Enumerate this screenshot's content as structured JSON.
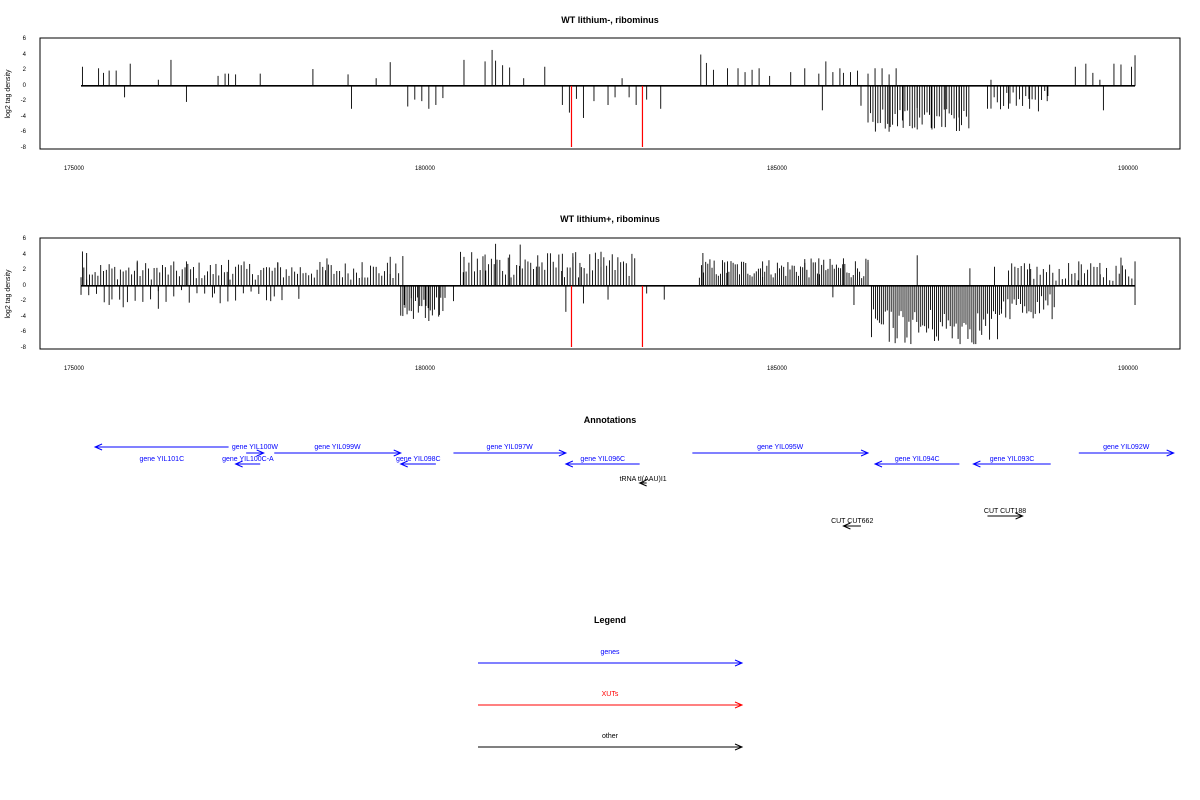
{
  "colors": {
    "gene": "#0000ff",
    "xut": "#ff0000",
    "other": "#000000",
    "signal": "#000000"
  },
  "chart_data": [
    {
      "type": "bar",
      "title": "WT lithium-, ribominus",
      "ylabel": "log2 tag density",
      "xlim": [
        175000,
        190000
      ],
      "ylim": [
        -8,
        6
      ],
      "x_ticks": [
        "175000",
        "180000",
        "185000",
        "190000"
      ],
      "y_ticks": [
        "6",
        "4",
        "2",
        "0",
        "-2",
        "-4",
        "-6",
        "-8"
      ],
      "grid": false,
      "series": [
        {
          "values": [
            [
              175120,
              2.5
            ],
            [
              175350,
              2.3
            ],
            [
              175420,
              1.7
            ],
            [
              175500,
              2.0
            ],
            [
              175600,
              2.0
            ],
            [
              175720,
              -1.5
            ],
            [
              175800,
              2.9
            ],
            [
              176200,
              0.8
            ],
            [
              176380,
              3.4
            ],
            [
              176600,
              -2.1
            ],
            [
              177050,
              1.3
            ],
            [
              177150,
              1.6
            ],
            [
              177200,
              1.6
            ],
            [
              177300,
              1.5
            ],
            [
              177650,
              1.6
            ],
            [
              178400,
              2.2
            ],
            [
              178900,
              1.5
            ],
            [
              178950,
              -3.0
            ],
            [
              179300,
              1.0
            ],
            [
              179500,
              3.1
            ],
            [
              179750,
              -2.7
            ],
            [
              179850,
              -1.8
            ],
            [
              179950,
              -2.0
            ],
            [
              180050,
              -3.0
            ],
            [
              180150,
              -2.5
            ],
            [
              180250,
              -1.6
            ],
            [
              180550,
              3.4
            ],
            [
              180850,
              3.2
            ],
            [
              180950,
              4.7
            ],
            [
              181000,
              3.3
            ],
            [
              181100,
              2.7
            ],
            [
              181200,
              2.4
            ],
            [
              181400,
              1.0
            ],
            [
              181700,
              2.5
            ],
            [
              181950,
              -2.5
            ],
            [
              182050,
              -3.5
            ],
            [
              182150,
              -1.7
            ],
            [
              182250,
              -4.2
            ],
            [
              182400,
              -2.0
            ],
            [
              182600,
              -2.5
            ],
            [
              182700,
              -1.5
            ],
            [
              182800,
              1.0
            ],
            [
              182900,
              -1.5
            ],
            [
              183000,
              -2.5
            ],
            [
              183150,
              -1.8
            ],
            [
              183350,
              -3.0
            ],
            [
              183920,
              4.1
            ],
            [
              184000,
              3.0
            ],
            [
              184100,
              2.1
            ],
            [
              184300,
              2.3
            ],
            [
              184450,
              2.3
            ],
            [
              184550,
              1.8
            ],
            [
              184650,
              2.1
            ],
            [
              184750,
              2.3
            ],
            [
              184900,
              1.3
            ],
            [
              185200,
              1.8
            ],
            [
              185400,
              2.3
            ],
            [
              185600,
              1.6
            ],
            [
              185700,
              3.2
            ],
            [
              185800,
              1.8
            ],
            [
              185900,
              2.3
            ],
            [
              185950,
              1.7
            ],
            [
              186050,
              1.8
            ],
            [
              186150,
              2.0
            ],
            [
              186300,
              1.6
            ],
            [
              186400,
              2.3
            ],
            [
              186500,
              2.3
            ],
            [
              186600,
              1.5
            ],
            [
              186700,
              2.3
            ],
            [
              185650,
              -3.2
            ],
            [
              186200,
              -2.6
            ],
            [
              186600,
              -6.0
            ],
            [
              186800,
              -5.5
            ],
            [
              187000,
              -5.7
            ],
            [
              187200,
              -5.5
            ],
            [
              187400,
              -5.4
            ],
            [
              187600,
              -5.9
            ],
            [
              188050,
              0.8
            ],
            [
              188000,
              -3.0
            ],
            [
              188300,
              -3.0
            ],
            [
              188600,
              -3.0
            ],
            [
              188850,
              -2.0
            ],
            [
              189250,
              2.5
            ],
            [
              189400,
              2.9
            ],
            [
              189500,
              1.7
            ],
            [
              189600,
              0.8
            ],
            [
              189800,
              2.9
            ],
            [
              189900,
              2.8
            ],
            [
              190050,
              2.5
            ],
            [
              190100,
              4.0
            ],
            [
              189650,
              -3.2
            ]
          ]
        }
      ],
      "band": {
        "x0": 186300,
        "x1": 187750,
        "min": -6.0,
        "max": -2.5,
        "step": 35
      },
      "band2": {
        "x0": 188050,
        "x1": 188900,
        "min": -3.5,
        "max": -0.6,
        "step": 45
      },
      "xut_lines": [
        [
          182080,
          -8
        ],
        [
          183090,
          -8
        ]
      ]
    },
    {
      "type": "bar",
      "title": "WT lithium+, ribominus",
      "ylabel": "log2 tag density",
      "xlim": [
        175000,
        190000
      ],
      "ylim": [
        -8,
        6
      ],
      "x_ticks": [
        "175000",
        "180000",
        "185000",
        "190000"
      ],
      "y_ticks": [
        "6",
        "4",
        "2",
        "0",
        "-2",
        "-4",
        "-6",
        "-8"
      ],
      "grid": false,
      "series": [
        {
          "values": [
            [
              175120,
              4.5
            ],
            [
              175180,
              4.3
            ],
            [
              175900,
              3.3
            ],
            [
              176600,
              3.2
            ],
            [
              177200,
              3.4
            ],
            [
              177900,
              3.1
            ],
            [
              178600,
              3.6
            ],
            [
              179100,
              3.1
            ],
            [
              179500,
              3.8
            ],
            [
              179680,
              3.9
            ],
            [
              180550,
              3.8
            ],
            [
              180850,
              4.1
            ],
            [
              181000,
              5.5
            ],
            [
              181200,
              4.1
            ],
            [
              181350,
              5.4
            ],
            [
              181600,
              4.0
            ],
            [
              181950,
              4.2
            ],
            [
              182100,
              3.8
            ],
            [
              182200,
              3.0
            ],
            [
              182500,
              2.5
            ],
            [
              183950,
              4.3
            ],
            [
              184300,
              3.2
            ],
            [
              184800,
              3.2
            ],
            [
              185400,
              3.5
            ],
            [
              185600,
              3.6
            ],
            [
              185950,
              3.6
            ],
            [
              186300,
              3.4
            ],
            [
              187000,
              4.0
            ],
            [
              187750,
              2.3
            ],
            [
              188100,
              2.5
            ],
            [
              188600,
              2.9
            ],
            [
              189300,
              3.2
            ],
            [
              189600,
              3.0
            ],
            [
              189900,
              3.7
            ],
            [
              190100,
              3.2
            ],
            [
              175500,
              -2.5
            ],
            [
              175700,
              -2.8
            ],
            [
              176200,
              -3.0
            ],
            [
              177000,
              -1.0
            ],
            [
              177800,
              -2.0
            ],
            [
              178200,
              -1.7
            ],
            [
              179700,
              -2.5
            ],
            [
              179800,
              -3.3
            ],
            [
              179900,
              -3.5
            ],
            [
              180000,
              -4.2
            ],
            [
              180050,
              -4.6
            ],
            [
              180200,
              -3.8
            ],
            [
              180400,
              -2.0
            ],
            [
              182000,
              -3.4
            ],
            [
              182250,
              -2.3
            ],
            [
              182600,
              -1.8
            ],
            [
              183150,
              -1.0
            ],
            [
              183400,
              -1.8
            ],
            [
              185800,
              -1.5
            ],
            [
              186100,
              -2.5
            ],
            [
              190100,
              -2.5
            ]
          ]
        }
      ],
      "band": {
        "x0": 186350,
        "x1": 188200,
        "min": -7.8,
        "max": -3.0,
        "step": 28
      },
      "band2": {
        "x0": 188200,
        "x1": 188950,
        "min": -4.5,
        "max": -1.0,
        "step": 30
      },
      "band3": {
        "x0": 179650,
        "x1": 180300,
        "min": -4.5,
        "max": -1.5,
        "step": 30
      },
      "dense": [
        {
          "x0": 175100,
          "x1": 179650,
          "min": 0.8,
          "max": 3.2,
          "step": 40
        },
        {
          "x0": 180500,
          "x1": 183000,
          "min": 1.0,
          "max": 4.5,
          "step": 40
        },
        {
          "x0": 183900,
          "x1": 186300,
          "min": 1.0,
          "max": 3.6,
          "step": 30
        },
        {
          "x0": 188300,
          "x1": 190100,
          "min": 0.6,
          "max": 3.0,
          "step": 45
        },
        {
          "x0": 175100,
          "x1": 178000,
          "min": -2.3,
          "max": -0.4,
          "step": 110
        }
      ],
      "xut_lines": [
        [
          182080,
          -8
        ],
        [
          183090,
          -8
        ]
      ]
    }
  ],
  "annotations": {
    "title": "Annotations",
    "xlim": [
      175000,
      190000
    ],
    "features": [
      {
        "label": "gene YIL101C",
        "strand": "-",
        "type": "gene",
        "x0": 175300,
        "x1": 177200,
        "row": 2
      },
      {
        "label": "gene YIL100W",
        "strand": "+",
        "type": "gene",
        "x0": 177450,
        "x1": 177700,
        "row": 0
      },
      {
        "label": "gene YIL100C-A",
        "strand": "-",
        "type": "gene",
        "x0": 177300,
        "x1": 177650,
        "row": 1
      },
      {
        "label": "gene YIL099W",
        "strand": "+",
        "type": "gene",
        "x0": 177850,
        "x1": 179650,
        "row": 0
      },
      {
        "label": "gene YIL098C",
        "strand": "-",
        "type": "gene",
        "x0": 179650,
        "x1": 180150,
        "row": 1
      },
      {
        "label": "gene YIL097W",
        "strand": "+",
        "type": "gene",
        "x0": 180400,
        "x1": 182000,
        "row": 0
      },
      {
        "label": "gene YIL096C",
        "strand": "-",
        "type": "gene",
        "x0": 182000,
        "x1": 183050,
        "row": 1
      },
      {
        "label": "tRNA tI(AAU)I1",
        "strand": "-",
        "type": "other",
        "x0": 183050,
        "x1": 183150,
        "row": 3
      },
      {
        "label": "gene YIL095W",
        "strand": "+",
        "type": "gene",
        "x0": 183800,
        "x1": 186300,
        "row": 0
      },
      {
        "label": "gene YIL094C",
        "strand": "-",
        "type": "gene",
        "x0": 186400,
        "x1": 187600,
        "row": 1
      },
      {
        "label": "gene YIL093C",
        "strand": "-",
        "type": "gene",
        "x0": 187800,
        "x1": 188900,
        "row": 1
      },
      {
        "label": "gene YIL092W",
        "strand": "+",
        "type": "gene",
        "x0": 189300,
        "x1": 190650,
        "row": 0
      },
      {
        "label": "CUT CUT662",
        "strand": "-",
        "type": "other",
        "x0": 185950,
        "x1": 186200,
        "row": 5
      },
      {
        "label": "CUT CUT188",
        "strand": "+",
        "type": "other",
        "x0": 188000,
        "x1": 188500,
        "row": 4
      }
    ]
  },
  "legend": {
    "title": "Legend",
    "items": [
      {
        "label": "genes",
        "type": "gene"
      },
      {
        "label": "XUTs",
        "type": "xut"
      },
      {
        "label": "other",
        "type": "other"
      }
    ]
  }
}
